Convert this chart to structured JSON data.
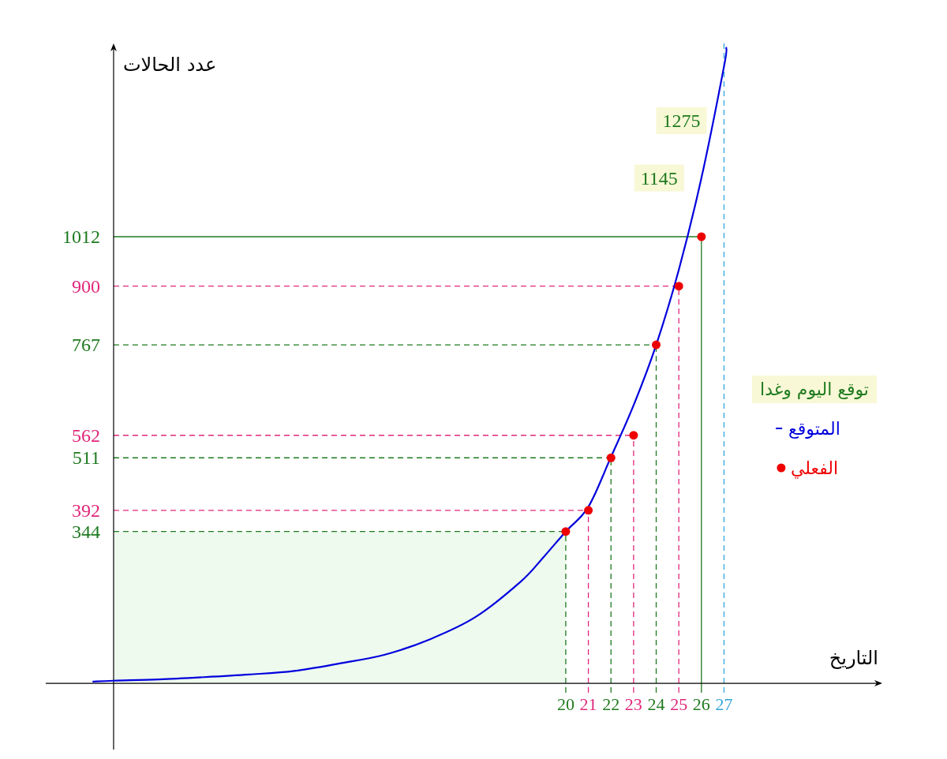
{
  "chart_data": {
    "type": "scatter",
    "xlabel": "التاريخ",
    "ylabel": "عدد الحالات",
    "legend_title": "توقع اليوم وغدا",
    "legend": "right",
    "xlim": [
      -3,
      34
    ],
    "ylim": [
      -150,
      1450
    ],
    "xticks": [
      20,
      21,
      22,
      23,
      24,
      25,
      26,
      27
    ],
    "yticks": [
      344,
      392,
      511,
      562,
      767,
      900,
      1012
    ],
    "series": [
      {
        "name": "المتوقع",
        "type": "line",
        "color": "#0000dd",
        "marker": "none",
        "x": [
          -0.9,
          0,
          2,
          4,
          6,
          8,
          10,
          12,
          14,
          16,
          18,
          19,
          20,
          21,
          22,
          23,
          24,
          25,
          26,
          27,
          27.1
        ],
        "values": [
          4,
          6,
          9,
          14,
          20,
          28,
          45,
          65,
          100,
          150,
          230,
          285,
          344,
          400,
          513,
          630,
          767,
          937,
          1145,
          1398,
          1440
        ]
      },
      {
        "name": "الفعلي",
        "type": "scatter",
        "color": "#ee0000",
        "marker": "circle",
        "x": [
          20,
          21,
          22,
          23,
          24,
          25,
          26
        ],
        "values": [
          344,
          392,
          511,
          562,
          767,
          900,
          1012
        ]
      }
    ],
    "ref_lines": [
      {
        "axis": "y",
        "value": 344,
        "color": "#1f7a1f",
        "line_style": "dashed"
      },
      {
        "axis": "y",
        "value": 392,
        "color": "#e0287a",
        "line_style": "dashed"
      },
      {
        "axis": "y",
        "value": 511,
        "color": "#1f7a1f",
        "line_style": "dashed"
      },
      {
        "axis": "y",
        "value": 562,
        "color": "#e0287a",
        "line_style": "dashed"
      },
      {
        "axis": "y",
        "value": 767,
        "color": "#1f7a1f",
        "line_style": "dashed"
      },
      {
        "axis": "y",
        "value": 900,
        "color": "#e0287a",
        "line_style": "dashed"
      },
      {
        "axis": "y",
        "value": 1012,
        "color": "#1f7a1f",
        "line_style": "solid"
      },
      {
        "axis": "x",
        "value": 20,
        "color": "#1f7a1f",
        "line_style": "dashed"
      },
      {
        "axis": "x",
        "value": 21,
        "color": "#e0287a",
        "line_style": "dashed"
      },
      {
        "axis": "x",
        "value": 22,
        "color": "#1f7a1f",
        "line_style": "dashed"
      },
      {
        "axis": "x",
        "value": 23,
        "color": "#e0287a",
        "line_style": "dashed"
      },
      {
        "axis": "x",
        "value": 24,
        "color": "#1f7a1f",
        "line_style": "dashed"
      },
      {
        "axis": "x",
        "value": 25,
        "color": "#e0287a",
        "line_style": "dashed"
      },
      {
        "axis": "x",
        "value": 26,
        "color": "#1f7a1f",
        "line_style": "solid"
      },
      {
        "axis": "x",
        "value": 27,
        "color": "#33a6dd",
        "line_style": "dashed"
      }
    ],
    "bands": [
      {
        "axis": "x",
        "from": 0,
        "to": 20,
        "color": "#eefaee"
      }
    ],
    "annotations": [
      {
        "text": "1145",
        "x": 26,
        "y": 1145
      },
      {
        "text": "1275",
        "x": 27,
        "y": 1275
      }
    ]
  }
}
